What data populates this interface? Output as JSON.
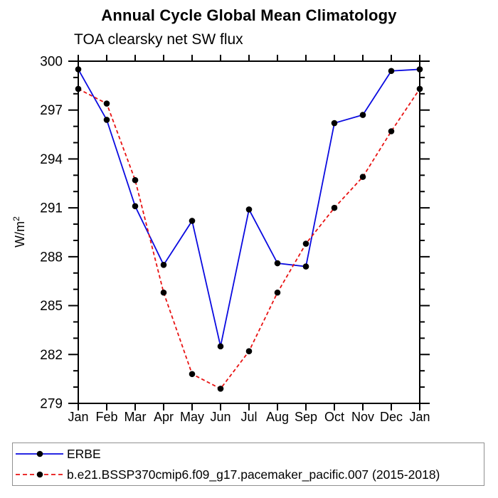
{
  "chart_data": {
    "type": "line",
    "title": "Annual Cycle Global Mean Climatology",
    "subtitle": "TOA clearsky net SW flux",
    "ylabel": "W/m²",
    "ylabel_base": "W/m",
    "ylabel_sup": "2",
    "categories": [
      "Jan",
      "Feb",
      "Mar",
      "Apr",
      "May",
      "Jun",
      "Jul",
      "Aug",
      "Sep",
      "Oct",
      "Nov",
      "Dec",
      "Jan"
    ],
    "ylim": [
      279,
      300
    ],
    "ytick_major": 3,
    "ytick_minor": 1,
    "grid": false,
    "legend_position": "bottom",
    "axis_color": "#000000",
    "series": [
      {
        "name": "ERBE",
        "color": "#0a0ae0",
        "line_style": "solid",
        "marker": "filled-circle",
        "marker_color": "#000000",
        "values": [
          299.5,
          296.4,
          291.1,
          287.5,
          290.2,
          282.5,
          290.9,
          287.6,
          287.4,
          296.2,
          296.7,
          299.4,
          299.5
        ]
      },
      {
        "name": "b.e21.BSSP370cmip6.f09_g17.pacemaker_pacific.007 (2015-2018)",
        "color": "#e81212",
        "line_style": "dashed",
        "marker": "filled-circle",
        "marker_color": "#000000",
        "values": [
          298.3,
          297.4,
          292.7,
          285.8,
          280.8,
          279.9,
          282.2,
          285.8,
          288.8,
          291.0,
          292.9,
          295.7,
          298.3
        ]
      }
    ]
  },
  "legend": {
    "border_color": "#909090"
  }
}
